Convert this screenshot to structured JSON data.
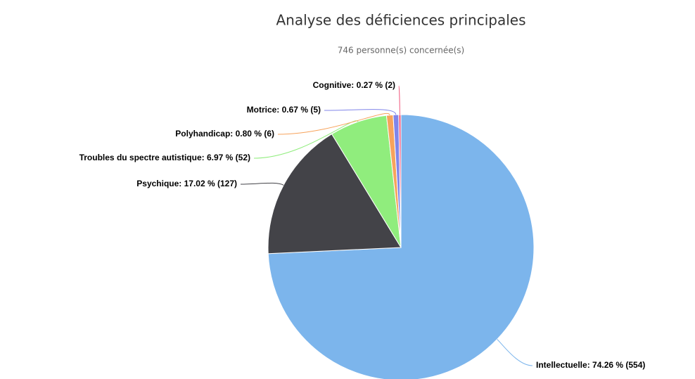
{
  "chart_data": {
    "type": "pie",
    "title": "Analyse des déficiences principales",
    "subtitle": "746 personne(s) concernée(s)",
    "values": [
      74.26,
      17.02,
      6.97,
      0.8,
      0.67,
      0.27
    ],
    "value_labels": [
      "Intellectuelle: 74.26 % (554)",
      "Psychique: 17.02 % (127)",
      "Troubles du spectre autistique: 6.97 % (52)",
      "Polyhandicap: 0.80 % (6)",
      "Motrice: 0.67 % (5)",
      "Cognitive: 0.27 % (2)"
    ],
    "colors": [
      "#7cb5ec",
      "#434348",
      "#90ed7d",
      "#f7a35c",
      "#8085e9",
      "#f15c80"
    ]
  }
}
